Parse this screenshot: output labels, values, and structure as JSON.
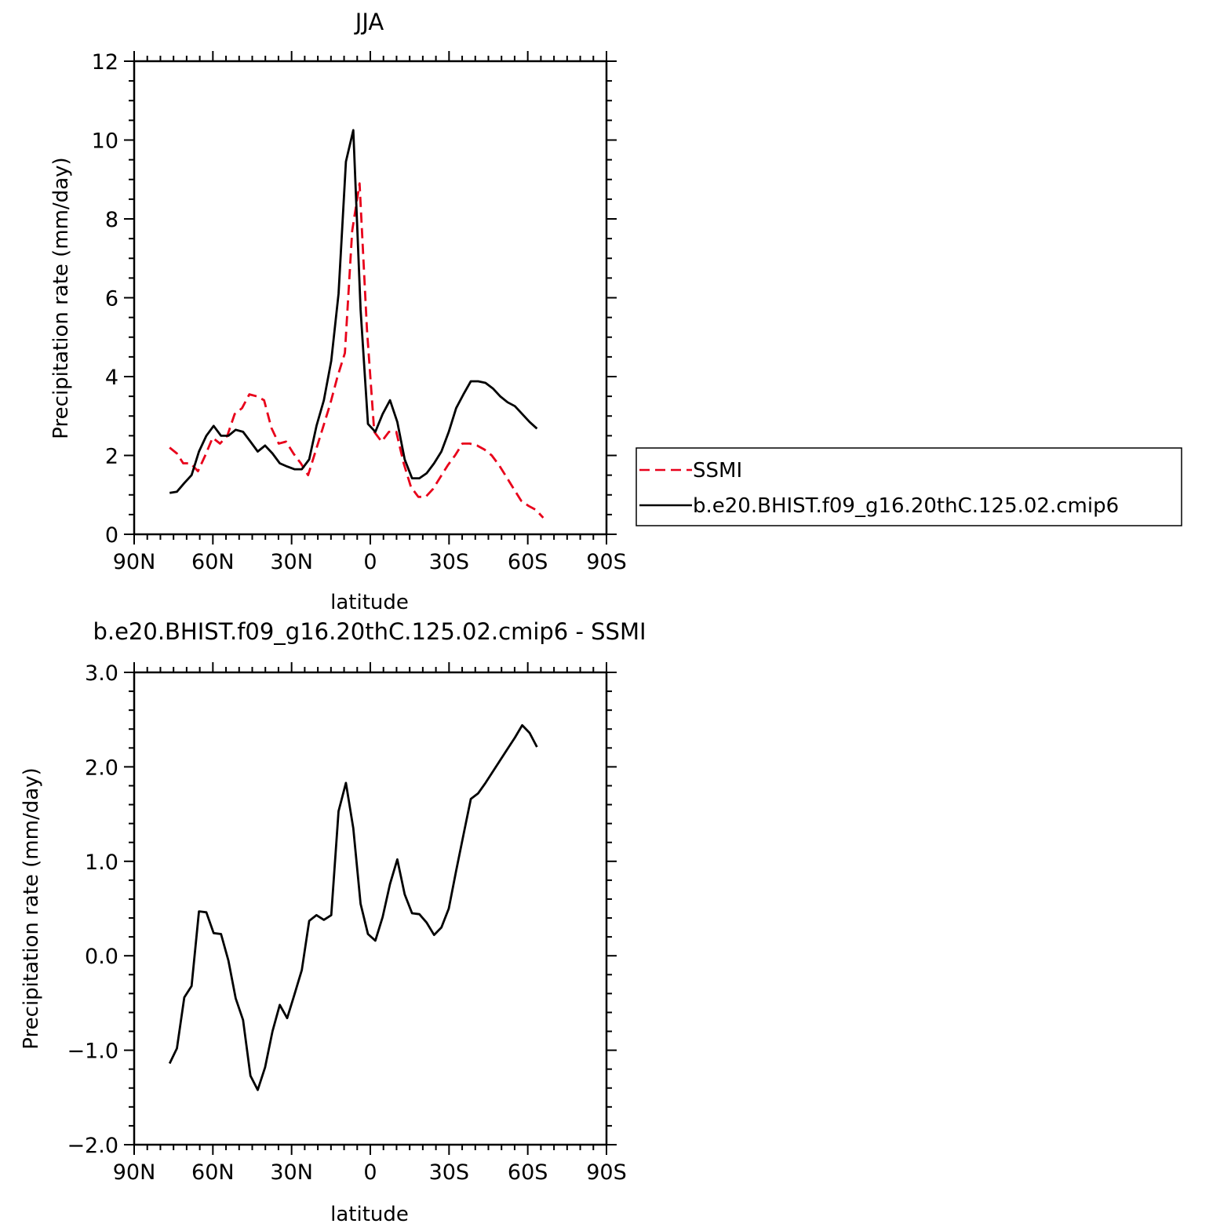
{
  "chart_data": [
    {
      "type": "line",
      "title": "JJA",
      "xlabel": "latitude",
      "ylabel": "Precipitation rate (mm/day)",
      "xlim": [
        90,
        -90
      ],
      "ylim": [
        0,
        12
      ],
      "x_ticks": [
        90,
        60,
        30,
        0,
        -30,
        -60,
        -90
      ],
      "x_tick_labels": [
        "90N",
        "60N",
        "30N",
        "0",
        "30S",
        "60S",
        "90S"
      ],
      "y_ticks": [
        0,
        2,
        4,
        6,
        8,
        10,
        12
      ],
      "y_tick_labels": [
        "0",
        "2",
        "4",
        "6",
        "8",
        "10",
        "12"
      ],
      "legend": {
        "location": "right",
        "entries": [
          "SSMI",
          "b.e20.BHIST.f09_g16.20thC.125.02.cmip6"
        ]
      },
      "series": [
        {
          "name": "SSMI",
          "color": "#e8001a",
          "dash": "dashed",
          "x": [
            76.5,
            73.7,
            71.3,
            68.5,
            65.7,
            62.9,
            60.1,
            57.3,
            54.5,
            51.7,
            48.9,
            46.1,
            43.3,
            40.5,
            37.7,
            34.9,
            32.1,
            29.3,
            26.5,
            23.7,
            20.9,
            18.1,
            15.3,
            12.5,
            9.7,
            6.9,
            4.1,
            1.3,
            -1.5,
            -4.3,
            -7.1,
            -9.9,
            -12.7,
            -15.5,
            -18.3,
            -21.1,
            -23.9,
            -26.7,
            -29.5,
            -32.3,
            -35.1,
            -37.9,
            -40.7,
            -43.5,
            -46.3,
            -49.1,
            -51.9,
            -54.7,
            -57.5,
            -60.3,
            -63.1,
            -65.9
          ],
          "y": [
            2.2,
            2.05,
            1.8,
            1.8,
            1.6,
            2.0,
            2.45,
            2.3,
            2.5,
            3.05,
            3.2,
            3.55,
            3.5,
            3.4,
            2.7,
            2.3,
            2.35,
            2.05,
            1.8,
            1.5,
            2.1,
            2.7,
            3.3,
            4.0,
            4.6,
            7.7,
            8.9,
            5.2,
            2.6,
            2.35,
            2.6,
            2.6,
            1.8,
            1.2,
            0.95,
            0.95,
            1.15,
            1.45,
            1.75,
            2.0,
            2.3,
            2.3,
            2.25,
            2.15,
            2.0,
            1.75,
            1.45,
            1.15,
            0.85,
            0.72,
            0.62,
            0.42
          ]
        },
        {
          "name": "b.e20.BHIST.f09_g16.20thC.125.02.cmip6",
          "color": "#000000",
          "dash": "solid",
          "x": [
            76.5,
            73.7,
            70.9,
            68.1,
            65.3,
            62.5,
            59.7,
            56.9,
            54.1,
            51.3,
            48.5,
            45.7,
            42.9,
            40.1,
            37.3,
            34.5,
            31.7,
            28.9,
            26.1,
            23.3,
            20.5,
            17.7,
            14.9,
            12.1,
            9.3,
            6.5,
            3.7,
            0.9,
            -1.9,
            -4.7,
            -7.5,
            -10.3,
            -13.1,
            -15.9,
            -18.7,
            -21.5,
            -24.3,
            -27.1,
            -29.9,
            -32.7,
            -35.5,
            -38.3,
            -41.1,
            -43.9,
            -46.7,
            -49.5,
            -52.3,
            -55.1,
            -57.9,
            -60.7,
            -63.5
          ],
          "y": [
            1.05,
            1.08,
            1.3,
            1.5,
            2.1,
            2.5,
            2.75,
            2.5,
            2.5,
            2.65,
            2.6,
            2.35,
            2.1,
            2.25,
            2.05,
            1.8,
            1.72,
            1.65,
            1.65,
            1.9,
            2.75,
            3.4,
            4.4,
            6.1,
            9.45,
            10.25,
            5.7,
            2.8,
            2.6,
            3.05,
            3.4,
            2.85,
            1.9,
            1.42,
            1.42,
            1.55,
            1.8,
            2.1,
            2.6,
            3.2,
            3.55,
            3.88,
            3.88,
            3.84,
            3.7,
            3.5,
            3.35,
            3.25,
            3.05,
            2.85,
            2.68
          ]
        }
      ]
    },
    {
      "type": "line",
      "title": "b.e20.BHIST.f09_g16.20thC.125.02.cmip6 - SSMI",
      "xlabel": "latitude",
      "ylabel": "Precipitation rate (mm/day)",
      "xlim": [
        90,
        -90
      ],
      "ylim": [
        -2.0,
        3.0
      ],
      "x_ticks": [
        90,
        60,
        30,
        0,
        -30,
        -60,
        -90
      ],
      "x_tick_labels": [
        "90N",
        "60N",
        "30N",
        "0",
        "30S",
        "60S",
        "90S"
      ],
      "y_ticks": [
        -2.0,
        -1.0,
        0.0,
        1.0,
        2.0,
        3.0
      ],
      "y_tick_labels": [
        "−2.0",
        "−1.0",
        "0.0",
        "1.0",
        "2.0",
        "3.0"
      ],
      "series": [
        {
          "color": "#000000",
          "dash": "solid",
          "x": [
            76.5,
            73.7,
            70.9,
            68.1,
            65.3,
            62.5,
            59.7,
            56.9,
            54.1,
            51.3,
            48.5,
            45.7,
            42.9,
            40.1,
            37.3,
            34.5,
            31.7,
            28.9,
            26.1,
            23.3,
            20.5,
            17.7,
            14.9,
            12.1,
            9.3,
            6.5,
            3.7,
            0.9,
            -1.9,
            -4.7,
            -7.5,
            -10.3,
            -13.1,
            -15.9,
            -18.7,
            -21.5,
            -24.3,
            -27.1,
            -29.9,
            -32.7,
            -35.5,
            -38.3,
            -41.1,
            -43.9,
            -46.7,
            -49.5,
            -52.3,
            -55.1,
            -57.9,
            -60.7,
            -63.5
          ],
          "y": [
            -1.14,
            -0.98,
            -0.44,
            -0.32,
            0.47,
            0.46,
            0.24,
            0.23,
            -0.05,
            -0.45,
            -0.68,
            -1.27,
            -1.42,
            -1.18,
            -0.8,
            -0.52,
            -0.66,
            -0.41,
            -0.15,
            0.37,
            0.43,
            0.38,
            0.43,
            1.53,
            1.83,
            1.35,
            0.55,
            0.23,
            0.16,
            0.41,
            0.76,
            1.02,
            0.65,
            0.45,
            0.44,
            0.35,
            0.22,
            0.3,
            0.5,
            0.9,
            1.28,
            1.66,
            1.72,
            1.83,
            1.95,
            2.07,
            2.19,
            2.31,
            2.44,
            2.36,
            2.21
          ]
        }
      ]
    }
  ]
}
